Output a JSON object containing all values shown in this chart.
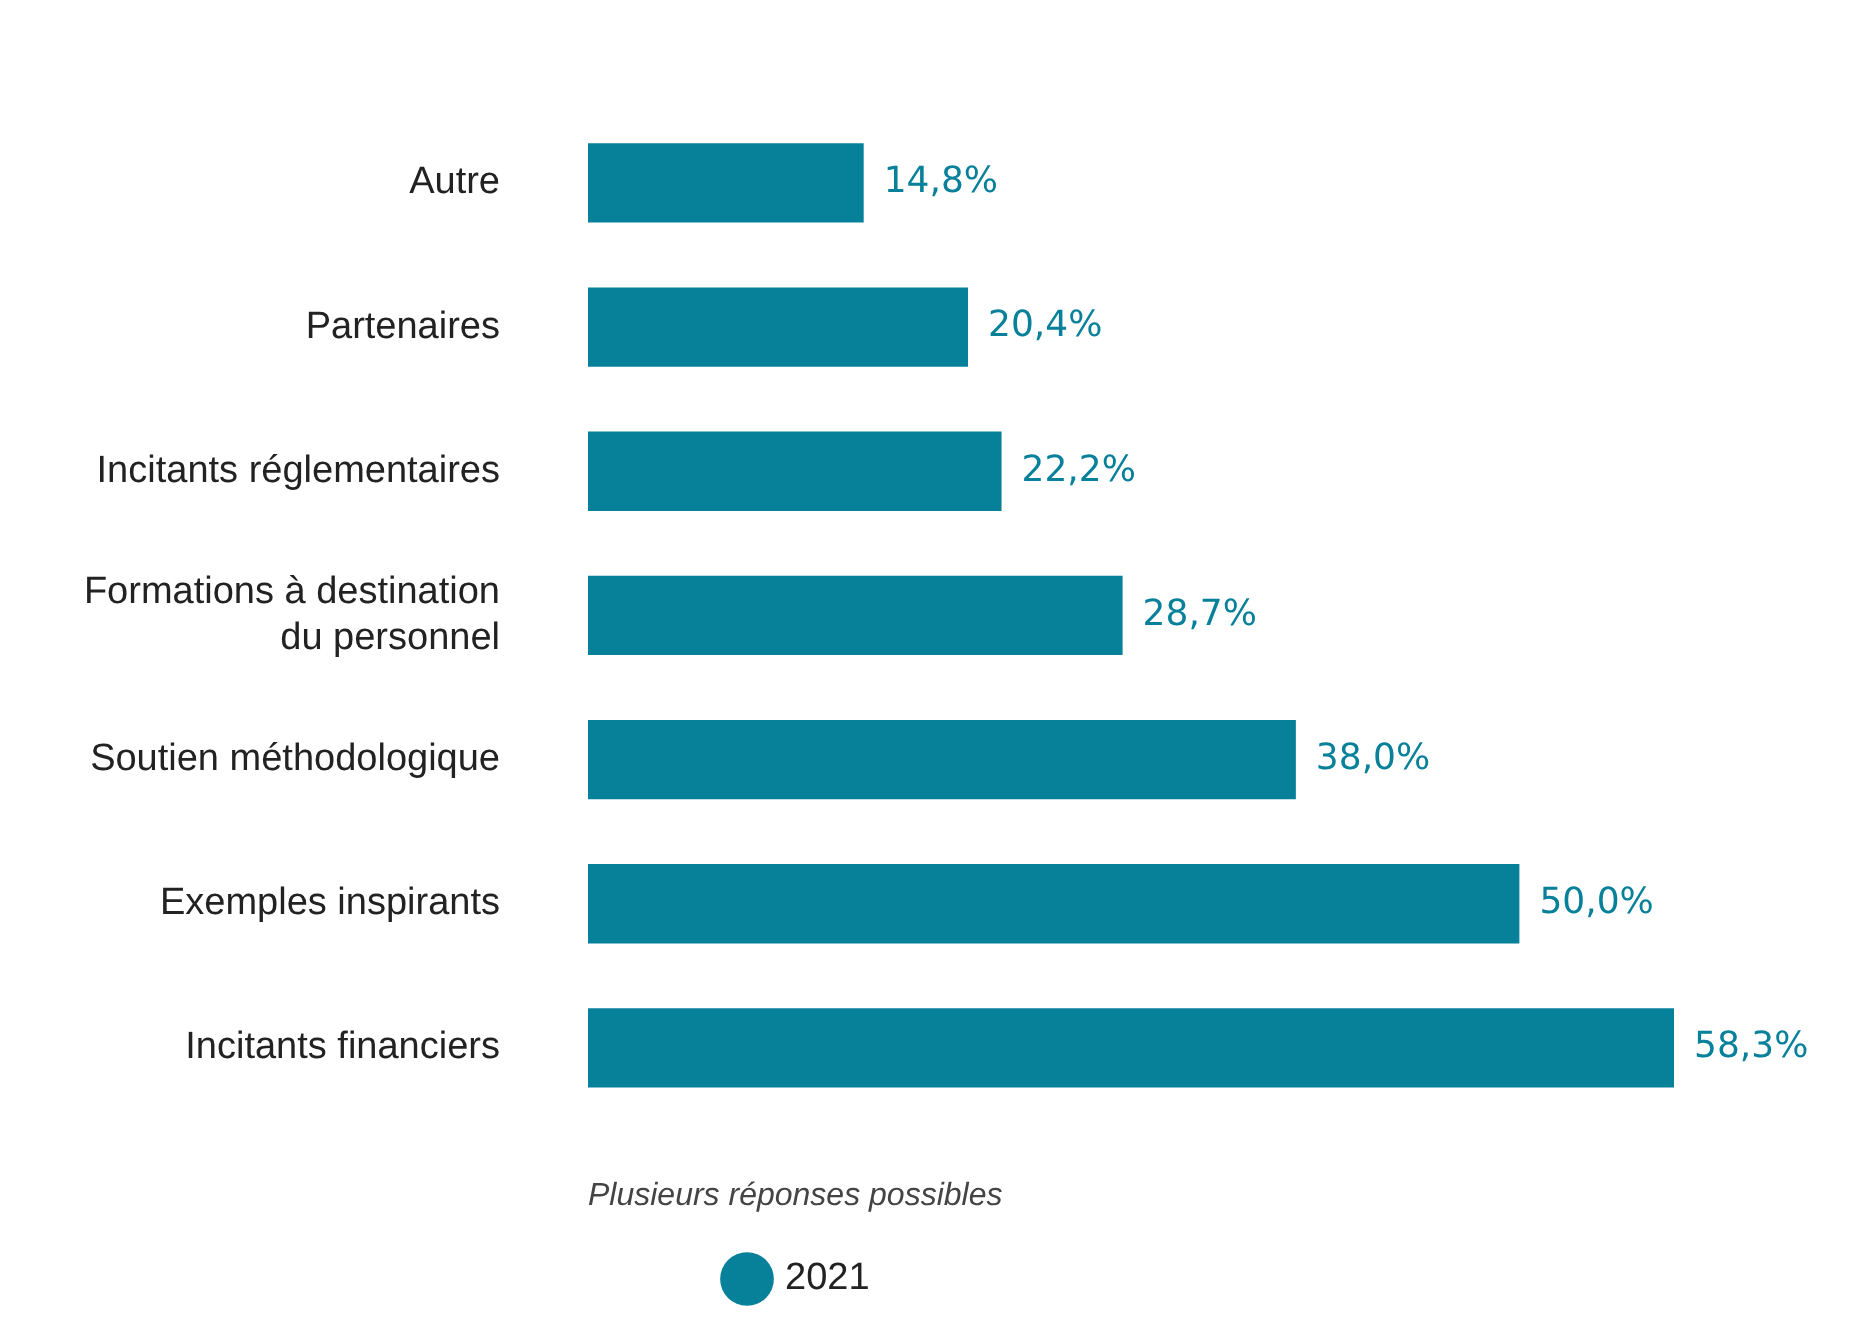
{
  "chart_data": {
    "type": "bar",
    "orientation": "horizontal",
    "categories": [
      "Autre",
      "Partenaires",
      "Incitants réglementaires",
      "Formations à destination du personnel",
      "Soutien méthodologique",
      "Exemples inspirants",
      "Incitants financiers"
    ],
    "series": [
      {
        "name": "2021",
        "color": "#07809a",
        "values": [
          14.8,
          20.4,
          22.2,
          28.7,
          38.0,
          50.0,
          58.3
        ],
        "value_labels": [
          "14,8%",
          "20,4%",
          "22,2%",
          "28,7%",
          "38,0%",
          "50,0%",
          "58,3%"
        ]
      }
    ],
    "annotations": [
      "Plusieurs réponses possibles"
    ],
    "legend": "bottom left",
    "tick_labels": "y"
  }
}
